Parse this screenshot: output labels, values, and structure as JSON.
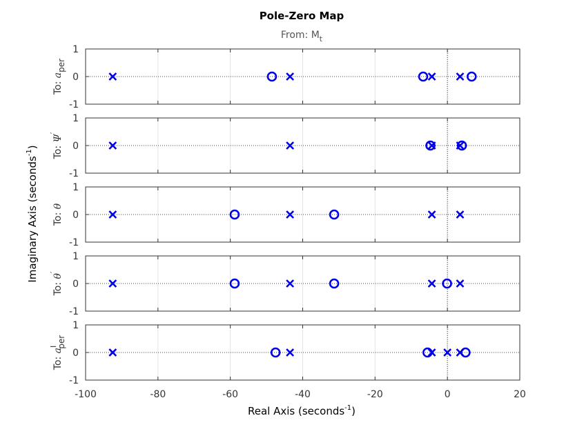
{
  "chart_data": {
    "type": "pole-zero",
    "title": "Pole-Zero Map",
    "subtitle": {
      "text": "From: M",
      "sub": "t"
    },
    "xlabel": {
      "text": "Real Axis (seconds",
      "sup": "-1",
      "close": ")"
    },
    "ylabel": {
      "text": "Imaginary Axis (seconds",
      "sup": "-1",
      "close": ")"
    },
    "xlim": [
      -100,
      20
    ],
    "ylim": [
      -1,
      1
    ],
    "xticks": [
      -100,
      -80,
      -60,
      -40,
      -20,
      0,
      20
    ],
    "xtick_labels": [
      "-100",
      "-80",
      "-60",
      "-40",
      "-20",
      "0",
      "20"
    ],
    "yticks": [
      1,
      0,
      -1
    ],
    "ytick_labels": [
      "1",
      "0",
      "-1"
    ],
    "marker_color": "#0000e6",
    "subplots": [
      {
        "label": {
          "prefix": "To: ",
          "symbol": "a",
          "sup": "",
          "sub": "per"
        },
        "poles": [
          -92.5,
          -43.5,
          -4.3,
          3.5
        ],
        "zeros": [
          -48.5,
          -6.7,
          6.7
        ]
      },
      {
        "label": {
          "prefix": "To: ",
          "symbol": "Ψ",
          "sup": "′",
          "sub": ""
        },
        "poles": [
          -92.5,
          -43.5,
          -4.3,
          3.5
        ],
        "zeros": [
          -4.7,
          4.0
        ]
      },
      {
        "label": {
          "prefix": "To: ",
          "symbol": "θ",
          "sup": "",
          "sub": ""
        },
        "poles": [
          -92.5,
          -43.5,
          -4.3,
          3.5
        ],
        "zeros": [
          -58.8,
          -31.3
        ]
      },
      {
        "label": {
          "prefix": "To: ",
          "symbol": "θ",
          "sup": "′",
          "sub": ""
        },
        "poles": [
          -92.5,
          -43.5,
          -4.3,
          3.5
        ],
        "zeros": [
          -58.8,
          -31.3,
          -0.1
        ]
      },
      {
        "label": {
          "prefix": "To: ",
          "symbol": "a",
          "sup": "I",
          "sub": "per"
        },
        "poles": [
          -92.5,
          -43.5,
          -4.3,
          0,
          3.5
        ],
        "zeros": [
          -47.5,
          -5.5,
          5.0
        ]
      }
    ]
  }
}
